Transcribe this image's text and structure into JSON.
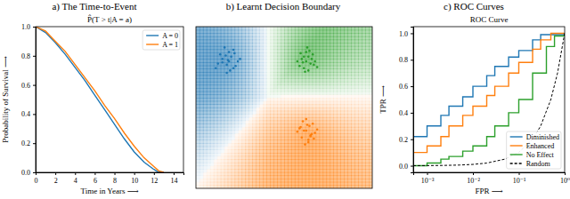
{
  "chart_data": [
    {
      "type": "line",
      "title": "a) The Time-to-Event",
      "subtitle": "P̂(T > t|A = a)",
      "x_label": "Time in Years ⟶",
      "y_label": "Probability of Survival ⟶",
      "x": [
        0,
        1,
        2,
        3,
        4,
        5,
        6,
        7,
        8,
        9,
        10,
        11,
        12,
        12.5,
        13
      ],
      "series": [
        {
          "name": "A = 0",
          "color": "#1f77b4",
          "values": [
            1.0,
            0.96,
            0.89,
            0.81,
            0.72,
            0.63,
            0.53,
            0.43,
            0.33,
            0.23,
            0.14,
            0.07,
            0.02,
            0.0,
            0.0
          ]
        },
        {
          "name": "A = 1",
          "color": "#ff7f0e",
          "values": [
            1.0,
            0.97,
            0.9,
            0.83,
            0.74,
            0.65,
            0.56,
            0.46,
            0.37,
            0.27,
            0.18,
            0.1,
            0.04,
            0.01,
            0.0
          ]
        }
      ],
      "xlim": [
        0,
        15
      ],
      "ylim": [
        0,
        1
      ],
      "xticks": [
        0,
        2,
        4,
        6,
        8,
        10,
        12,
        14
      ],
      "yticks": [
        {
          "value": 0,
          "label": "0.0"
        },
        0.2,
        0.4,
        0.6,
        0.8,
        {
          "value": 1,
          "label": "1.0"
        }
      ],
      "legend": "upper right",
      "grid": false
    },
    {
      "type": "scatter",
      "title": "b) Learnt Decision Boundary",
      "marker": "circle",
      "series": [
        {
          "color": "#1f77b4",
          "x": [
            -2.3,
            -1.8,
            -2.0,
            -1.6,
            -2.5,
            -2.1,
            -1.9,
            -2.2,
            -1.7,
            -2.4,
            -2.0,
            -1.5,
            -2.6,
            -2.1,
            -1.8,
            -2.3,
            -1.95,
            -2.15,
            -1.75,
            -2.05
          ],
          "values": [
            1.6,
            1.2,
            1.9,
            1.5,
            1.4,
            1.0,
            1.7,
            2.1,
            1.3,
            1.8,
            1.5,
            1.6,
            1.2,
            1.35,
            2.0,
            1.45,
            1.1,
            1.75,
            1.85,
            1.55
          ]
        },
        {
          "color": "#2ca02c",
          "x": [
            1.3,
            1.7,
            1.5,
            1.9,
            1.2,
            1.6,
            1.4,
            1.8,
            1.1,
            1.55,
            2.0,
            1.35,
            1.65,
            1.45,
            1.75,
            1.25,
            1.85,
            1.5,
            1.6,
            1.4
          ],
          "values": [
            1.6,
            1.4,
            1.9,
            1.5,
            1.3,
            1.1,
            1.7,
            1.8,
            1.5,
            2.1,
            1.25,
            1.45,
            1.95,
            1.05,
            1.6,
            1.85,
            1.35,
            1.5,
            1.7,
            1.2
          ]
        },
        {
          "color": "#ff7f0e",
          "x": [
            1.4,
            1.8,
            1.6,
            1.2,
            1.9,
            1.5,
            1.7,
            1.3,
            1.65,
            1.45,
            2.0,
            1.1,
            1.55,
            1.75,
            1.35,
            1.85,
            1.5,
            1.6,
            1.25,
            1.7
          ],
          "values": [
            -1.5,
            -1.2,
            -1.9,
            -1.4,
            -1.6,
            -1.0,
            -1.7,
            -1.8,
            -1.3,
            -2.1,
            -1.45,
            -1.55,
            -1.25,
            -1.65,
            -1.1,
            -1.85,
            -1.5,
            -2.0,
            -1.35,
            -1.75
          ]
        }
      ],
      "xlim": [
        -3.5,
        4.5
      ],
      "ylim": [
        -4,
        3
      ],
      "tick_labels": false,
      "grid": false
    },
    {
      "type": "line",
      "title": "c) ROC Curves",
      "subtitle": "ROC Curve",
      "x_label": "FPR ⟶",
      "y_label": "TPR ⟶",
      "log": "x",
      "line_style": "step",
      "series": [
        {
          "name": "Diminished",
          "color": "#1f77b4",
          "x": [
            0.0005,
            0.001,
            0.002,
            0.003,
            0.006,
            0.01,
            0.02,
            0.03,
            0.06,
            0.1,
            0.2,
            0.3,
            1
          ],
          "values": [
            0.22,
            0.3,
            0.38,
            0.45,
            0.52,
            0.6,
            0.68,
            0.75,
            0.82,
            0.87,
            0.95,
            0.99,
            1.0
          ]
        },
        {
          "name": "Enhanced",
          "color": "#ff7f0e",
          "x": [
            0.0005,
            0.001,
            0.002,
            0.003,
            0.006,
            0.01,
            0.02,
            0.03,
            0.06,
            0.1,
            0.2,
            0.3,
            0.5,
            1
          ],
          "values": [
            0.1,
            0.15,
            0.22,
            0.3,
            0.38,
            0.45,
            0.53,
            0.6,
            0.7,
            0.78,
            0.88,
            0.95,
            1.0,
            1.0
          ]
        },
        {
          "name": "No Effect",
          "color": "#2ca02c",
          "x": [
            0.0005,
            0.001,
            0.002,
            0.003,
            0.006,
            0.01,
            0.02,
            0.03,
            0.06,
            0.1,
            0.2,
            0.4,
            0.6,
            1
          ],
          "values": [
            0.0,
            0.02,
            0.05,
            0.07,
            0.11,
            0.15,
            0.22,
            0.3,
            0.4,
            0.5,
            0.7,
            0.9,
            0.98,
            1.0
          ]
        },
        {
          "name": "Random",
          "color": "#000000",
          "line_style": "dashed",
          "x": [
            0.0005,
            0.001,
            0.002,
            0.005,
            0.01,
            0.02,
            0.05,
            0.1,
            0.2,
            0.3,
            0.5,
            0.7,
            1
          ],
          "values": [
            0.0005,
            0.001,
            0.002,
            0.005,
            0.01,
            0.02,
            0.05,
            0.1,
            0.2,
            0.3,
            0.5,
            0.7,
            1
          ]
        }
      ],
      "xlim": [
        0.0005,
        1
      ],
      "ylim": [
        -0.05,
        1.05
      ],
      "xticks": [
        {
          "value": 0.001,
          "label": "10⁻³"
        },
        {
          "value": 0.01,
          "label": "10⁻²"
        },
        {
          "value": 0.1,
          "label": "10⁻¹"
        },
        {
          "value": 1,
          "label": "10⁰"
        }
      ],
      "yticks": [
        {
          "value": 0,
          "label": "0.0"
        },
        0.2,
        0.4,
        0.6,
        0.8,
        {
          "value": 1,
          "label": "1.0"
        }
      ],
      "legend": "lower right",
      "grid": false
    }
  ]
}
